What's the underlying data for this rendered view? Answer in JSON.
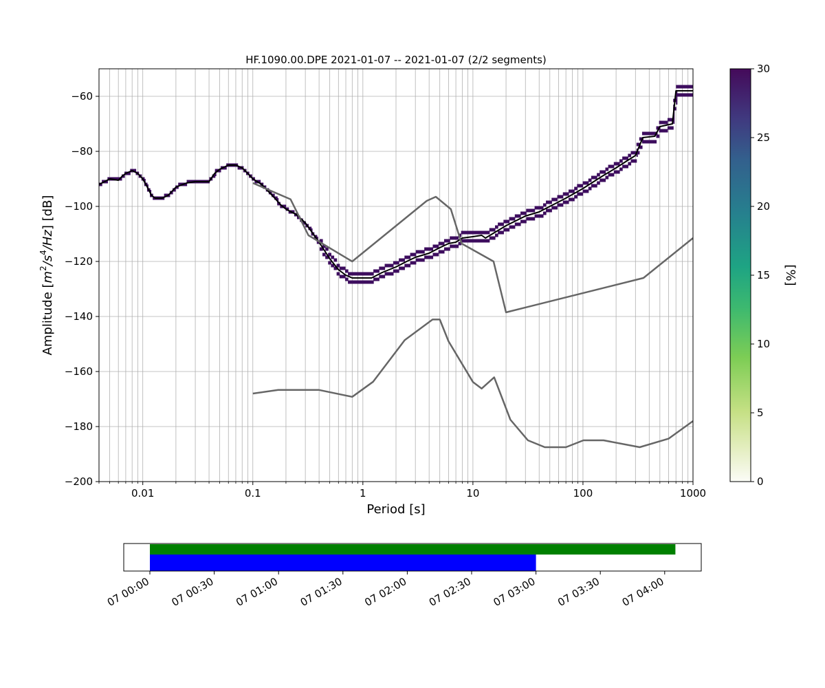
{
  "chart_data": [
    {
      "type": "line",
      "title": "HF.1090.00.DPE   2021-01-07 -- 2021-01-07  (2/2 segments)",
      "xlabel": "Period [s]",
      "ylabel_prefix": "Amplitude [",
      "ylabel_units": [
        "m",
        "2",
        "/s",
        "4",
        "/Hz",
        "] [dB]"
      ],
      "xscale": "log",
      "xlim": [
        0.004,
        1000
      ],
      "ylim": [
        -200,
        -50
      ],
      "grid": true,
      "xticks": [
        {
          "value": 0.01,
          "label": "0.01"
        },
        {
          "value": 0.1,
          "label": "0.1"
        },
        {
          "value": 1,
          "label": "1"
        },
        {
          "value": 10,
          "label": "10"
        },
        {
          "value": 100,
          "label": "100"
        },
        {
          "value": 1000,
          "label": "1000"
        }
      ],
      "yticks": [
        {
          "value": -60,
          "label": "−60"
        },
        {
          "value": -80,
          "label": "−80"
        },
        {
          "value": -100,
          "label": "−100"
        },
        {
          "value": -120,
          "label": "−120"
        },
        {
          "value": -140,
          "label": "−140"
        },
        {
          "value": -160,
          "label": "−160"
        },
        {
          "value": -180,
          "label": "−180"
        },
        {
          "value": -200,
          "label": "−200"
        }
      ],
      "colorbar": {
        "label": "[%]",
        "range": [
          0,
          30
        ],
        "colormap": "viridis_r-like (white to dark purple)",
        "ticks": [
          "0",
          "5",
          "10",
          "15",
          "20",
          "25",
          "30"
        ]
      },
      "series": [
        {
          "role": "mean",
          "color": "#000000",
          "points": [
            [
              0.004,
              -92
            ],
            [
              0.0045,
              -91
            ],
            [
              0.005,
              -90
            ],
            [
              0.006,
              -90.5
            ],
            [
              0.0065,
              -89
            ],
            [
              0.007,
              -88
            ],
            [
              0.008,
              -87
            ],
            [
              0.009,
              -88
            ],
            [
              0.01,
              -90
            ],
            [
              0.011,
              -93
            ],
            [
              0.012,
              -96
            ],
            [
              0.013,
              -97
            ],
            [
              0.015,
              -97
            ],
            [
              0.017,
              -96
            ],
            [
              0.02,
              -93
            ],
            [
              0.025,
              -91.5
            ],
            [
              0.03,
              -91
            ],
            [
              0.035,
              -91
            ],
            [
              0.04,
              -91
            ],
            [
              0.045,
              -88
            ],
            [
              0.05,
              -86.5
            ],
            [
              0.06,
              -85
            ],
            [
              0.07,
              -85
            ],
            [
              0.08,
              -86
            ],
            [
              0.09,
              -88
            ],
            [
              0.1,
              -90
            ],
            [
              0.12,
              -92
            ],
            [
              0.15,
              -96
            ],
            [
              0.18,
              -99.5
            ],
            [
              0.2,
              -101
            ],
            [
              0.25,
              -103
            ],
            [
              0.3,
              -106
            ],
            [
              0.4,
              -113
            ],
            [
              0.5,
              -119
            ],
            [
              0.6,
              -123
            ],
            [
              0.7,
              -125
            ],
            [
              0.8,
              -126
            ],
            [
              1,
              -126
            ],
            [
              1.2,
              -126
            ],
            [
              1.5,
              -124
            ],
            [
              2,
              -122
            ],
            [
              2.5,
              -120
            ],
            [
              3,
              -118.5
            ],
            [
              4,
              -117
            ],
            [
              5,
              -115
            ],
            [
              6,
              -113.5
            ],
            [
              7,
              -113
            ],
            [
              8,
              -111.5
            ],
            [
              10,
              -111
            ],
            [
              12,
              -110.5
            ],
            [
              13,
              -111.5
            ],
            [
              15,
              -110
            ],
            [
              20,
              -107
            ],
            [
              30,
              -103.5
            ],
            [
              40,
              -102
            ],
            [
              50,
              -100
            ],
            [
              70,
              -97
            ],
            [
              100,
              -93.5
            ],
            [
              150,
              -89
            ],
            [
              200,
              -86
            ],
            [
              250,
              -83.5
            ],
            [
              300,
              -81.5
            ],
            [
              350,
              -75
            ],
            [
              450,
              -74.5
            ],
            [
              500,
              -71
            ],
            [
              650,
              -70
            ],
            [
              700,
              -58
            ],
            [
              1000,
              -58
            ]
          ]
        },
        {
          "role": "noise-model-upper",
          "color": "#666666",
          "points": [
            [
              0.1,
              -91.5
            ],
            [
              0.22,
              -97.4
            ],
            [
              0.32,
              -110.5
            ],
            [
              0.8,
              -120
            ],
            [
              3.8,
              -98
            ],
            [
              4.6,
              -96.5
            ],
            [
              6.3,
              -101
            ],
            [
              7.9,
              -113.5
            ],
            [
              15.4,
              -120
            ],
            [
              20,
              -138.5
            ],
            [
              354.8,
              -126
            ],
            [
              1000,
              -111.5
            ]
          ]
        },
        {
          "role": "noise-model-lower",
          "color": "#666666",
          "points": [
            [
              0.1,
              -168
            ],
            [
              0.17,
              -166.7
            ],
            [
              0.4,
              -166.7
            ],
            [
              0.8,
              -169.2
            ],
            [
              1.24,
              -163.7
            ],
            [
              2.4,
              -148.6
            ],
            [
              4.3,
              -141.1
            ],
            [
              5,
              -141.1
            ],
            [
              6,
              -149
            ],
            [
              10,
              -163.8
            ],
            [
              12,
              -166.2
            ],
            [
              15.6,
              -162.1
            ],
            [
              21.9,
              -177.5
            ],
            [
              31.6,
              -185
            ],
            [
              45,
              -187.5
            ],
            [
              70,
              -187.5
            ],
            [
              101,
              -185
            ],
            [
              154,
              -185
            ],
            [
              328,
              -187.5
            ],
            [
              600,
              -184.4
            ],
            [
              1000,
              -178
            ]
          ]
        }
      ],
      "histogram_band": {
        "color": "#3d0d5e",
        "description": "probability density cells around the mean curve"
      }
    },
    {
      "type": "timeline",
      "xticks": [
        "07 00:00",
        "07 00:30",
        "07 01:00",
        "07 01:30",
        "07 02:00",
        "07 02:30",
        "07 03:00",
        "07 03:30",
        "07 04:00"
      ],
      "bars": [
        {
          "role": "data-coverage",
          "color": "#008000",
          "start_min": 0,
          "end_min": 245
        },
        {
          "role": "psd-segments",
          "color": "#0000ff",
          "start_min": 0,
          "end_min": 180
        }
      ]
    }
  ]
}
